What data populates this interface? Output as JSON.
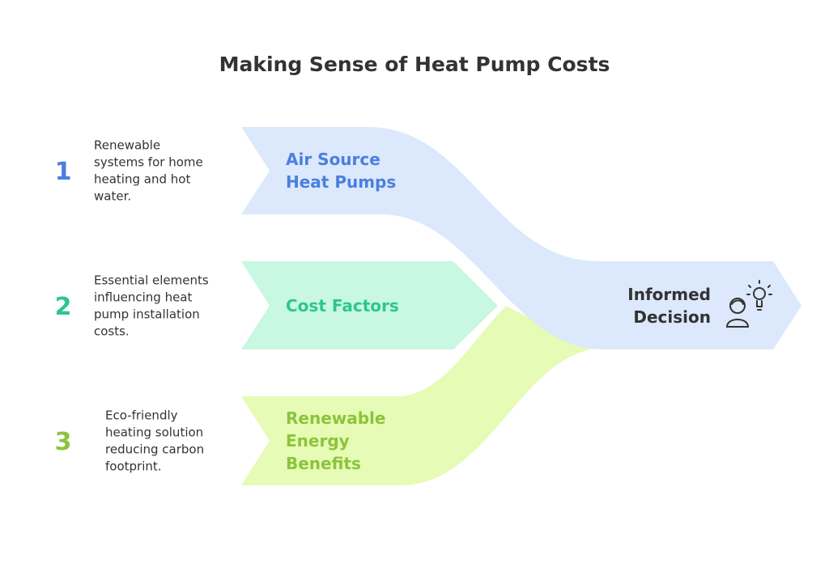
{
  "title": "Making Sense of Heat Pump Costs",
  "items": [
    {
      "number": "1",
      "description": [
        "Renewable",
        "systems for home",
        "heating and hot",
        "water."
      ],
      "label": [
        "Air Source",
        "Heat Pumps"
      ]
    },
    {
      "number": "2",
      "description": [
        "Essential elements",
        "influencing heat",
        "pump installation",
        "costs."
      ],
      "label": [
        "Cost Factors"
      ]
    },
    {
      "number": "3",
      "description": [
        "Eco-friendly",
        "heating solution",
        "reducing carbon",
        "footprint."
      ],
      "label": [
        "Renewable",
        "Energy",
        "Benefits"
      ]
    }
  ],
  "result": [
    "Informed",
    "Decision"
  ]
}
